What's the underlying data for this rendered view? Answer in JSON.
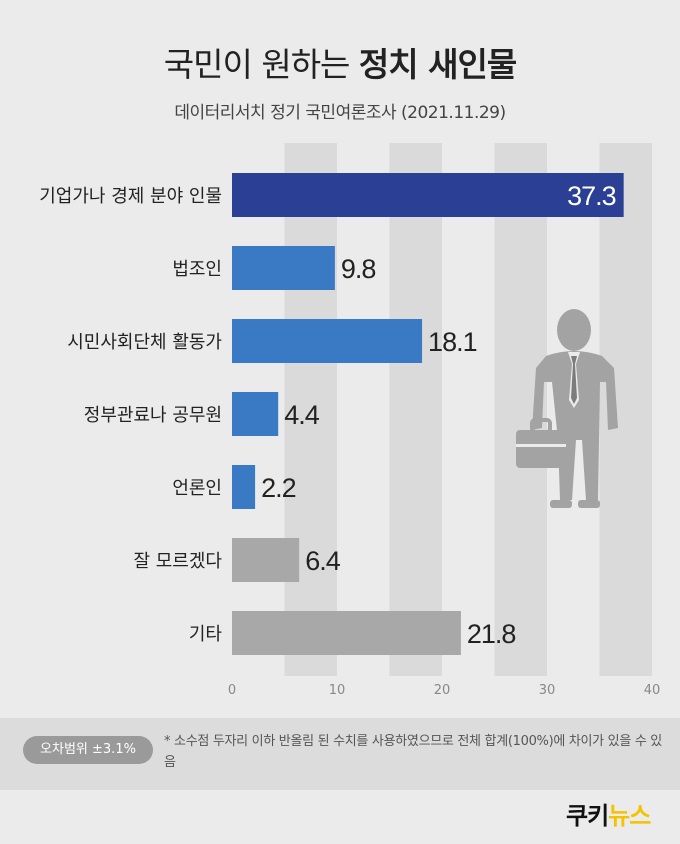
{
  "title_light": "국민이 원하는",
  "title_bold": "정치 새인물",
  "subtitle": "데이터리서치 정기 국민여론조사 (2021.11.29)",
  "chart_data": {
    "type": "bar",
    "orientation": "horizontal",
    "categories": [
      "기업가나 경제 분야 인물",
      "법조인",
      "시민사회단체 활동가",
      "정부관료나 공무원",
      "언론인",
      "잘 모르겠다",
      "기타"
    ],
    "values": [
      37.3,
      9.8,
      18.1,
      4.4,
      2.2,
      6.4,
      21.8
    ],
    "data_labels": [
      "37.3",
      "9.8",
      "18.1",
      "4.4",
      "2.2",
      "6.4",
      "21.8"
    ],
    "xlim": [
      0,
      40
    ],
    "ticks": [
      0,
      10,
      20,
      30,
      40
    ],
    "tick_labels": [
      "0",
      "10",
      "20",
      "30",
      "40"
    ],
    "grid": "alternating vertical bands",
    "colors": {
      "highlight": "#2b3f95",
      "blue": "#3a79c4",
      "gray": "#a8a8a8",
      "band": "#dadada"
    },
    "bar_color_keys": [
      "highlight",
      "blue",
      "blue",
      "blue",
      "blue",
      "gray",
      "gray"
    ]
  },
  "footer": {
    "badge": "오차범위 ±3.1%",
    "note": "* 소수점 두자리 이하 반올림 된 수치를 사용하였으므로 전체 합계(100%)에 차이가 있을 수 있음",
    "logo_left": "쿠키",
    "logo_right": "뉴스"
  },
  "icon": "businessman-with-briefcase-icon"
}
